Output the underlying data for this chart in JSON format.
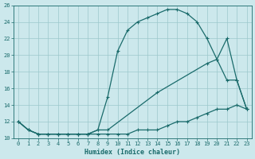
{
  "xlabel": "Humidex (Indice chaleur)",
  "bg_color": "#cce8ec",
  "grid_color": "#9cc8cc",
  "line_color": "#1a6b6b",
  "xlim": [
    -0.5,
    23.5
  ],
  "ylim": [
    10,
    26
  ],
  "xticks": [
    0,
    1,
    2,
    3,
    4,
    5,
    6,
    7,
    8,
    9,
    10,
    11,
    12,
    13,
    14,
    15,
    16,
    17,
    18,
    19,
    20,
    21,
    22,
    23
  ],
  "yticks": [
    10,
    12,
    14,
    16,
    18,
    20,
    22,
    24,
    26
  ],
  "line1_x": [
    0,
    1,
    2,
    3,
    4,
    5,
    6,
    7,
    8,
    9,
    10,
    11,
    12,
    13,
    14,
    15,
    16,
    17,
    18,
    19,
    20,
    21,
    22,
    23
  ],
  "line1_y": [
    12,
    11,
    10.5,
    10.5,
    10.5,
    10.5,
    10.5,
    10.5,
    10.5,
    10.5,
    10.5,
    10.5,
    11,
    11,
    11,
    11.5,
    12,
    12,
    12.5,
    13,
    13.5,
    13.5,
    14,
    13.5
  ],
  "line2_x": [
    0,
    1,
    2,
    3,
    4,
    5,
    6,
    7,
    8,
    9,
    10,
    11,
    12,
    13,
    14,
    15,
    16,
    17,
    18,
    19,
    20,
    21,
    22,
    23
  ],
  "line2_y": [
    12,
    11,
    10.5,
    10.5,
    10.5,
    10.5,
    10.5,
    10.5,
    11,
    15,
    20.5,
    23,
    24,
    24.5,
    25,
    25.5,
    25.5,
    25,
    24,
    22,
    19.5,
    22,
    17,
    13.5
  ],
  "line3_x": [
    0,
    1,
    2,
    3,
    4,
    5,
    6,
    7,
    8,
    9,
    14,
    19,
    20,
    21,
    22,
    23
  ],
  "line3_y": [
    12,
    11,
    10.5,
    10.5,
    10.5,
    10.5,
    10.5,
    10.5,
    11,
    11,
    15.5,
    19,
    19.5,
    17,
    17,
    13.5
  ]
}
